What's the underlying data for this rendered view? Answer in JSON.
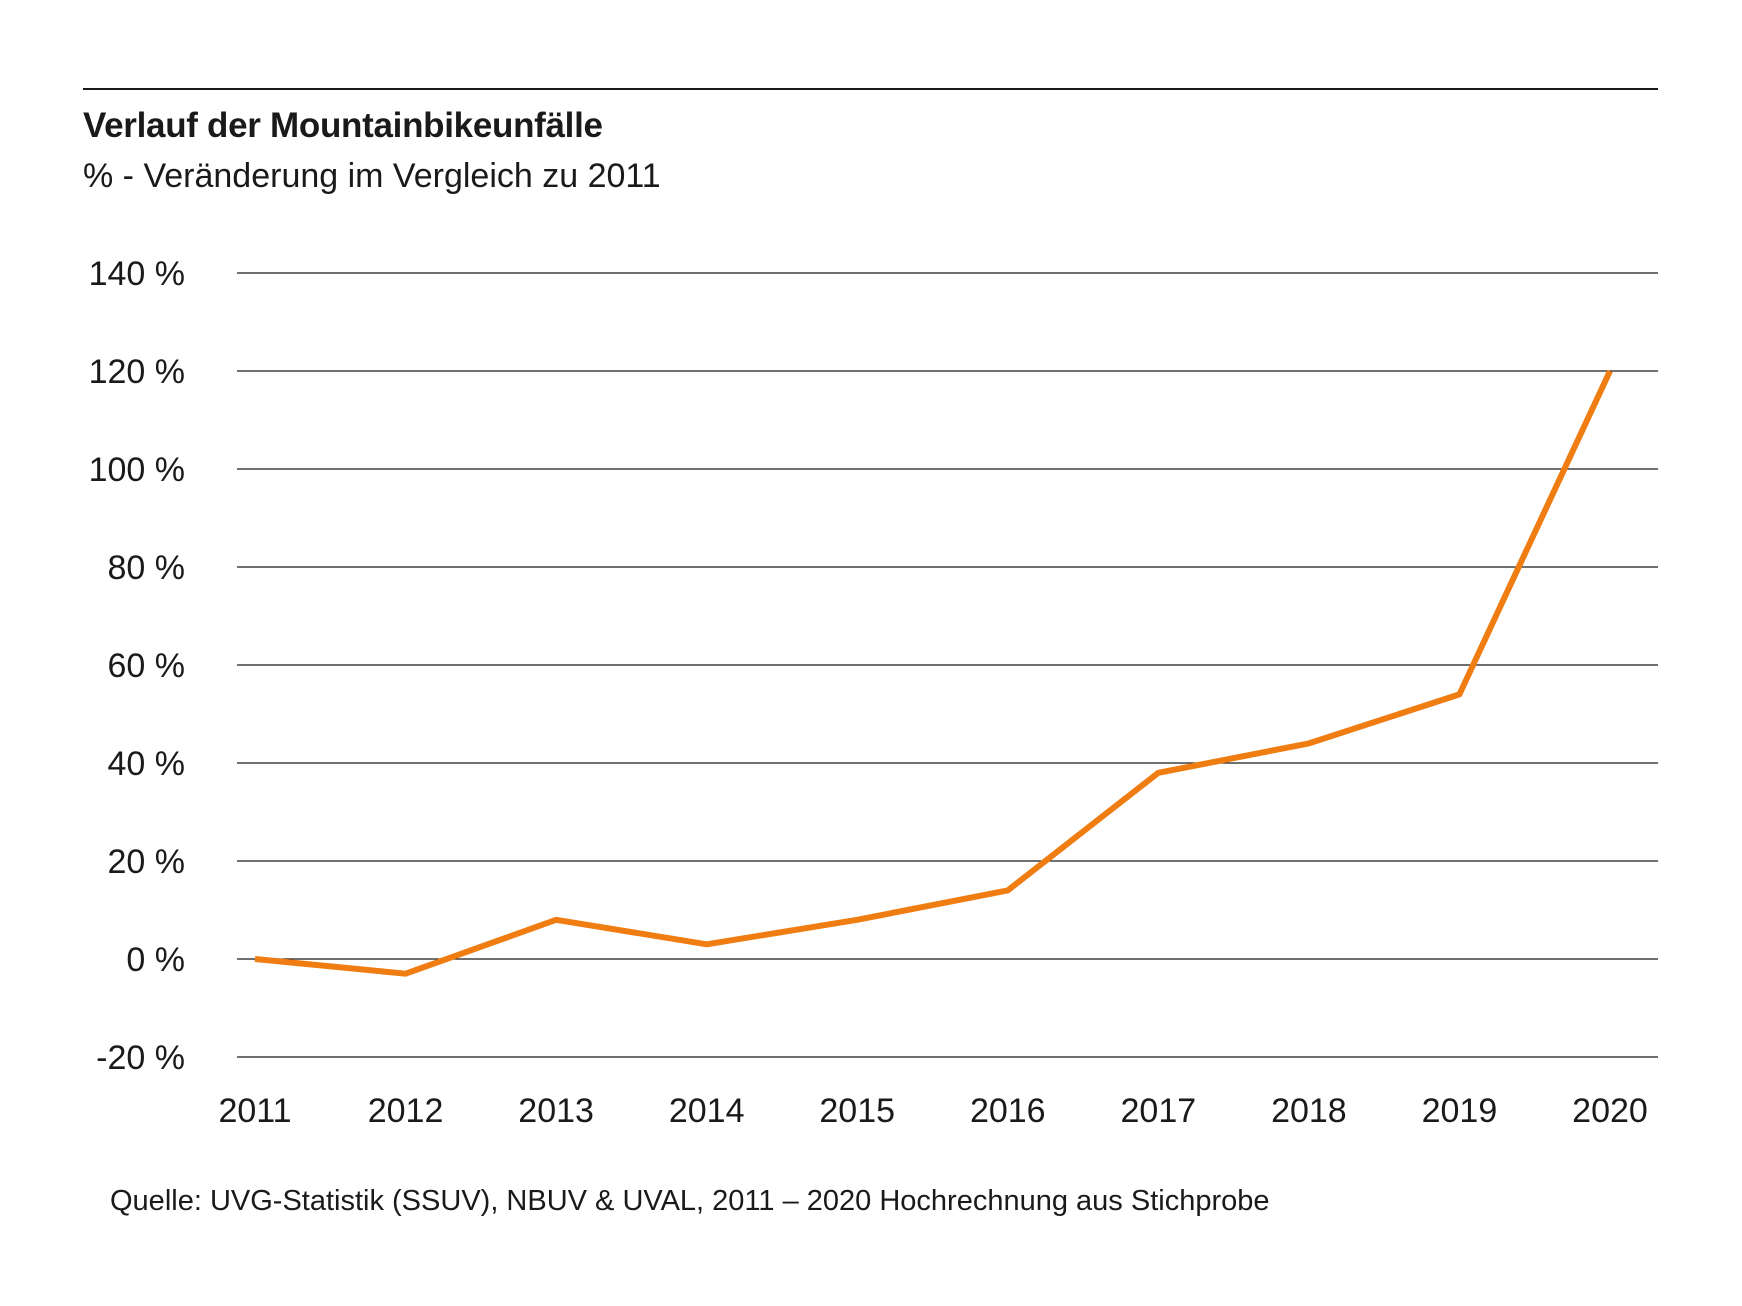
{
  "chart_data": {
    "type": "line",
    "title": "Verlauf der Mountainbikeunfälle",
    "subtitle": "% - Veränderung im Vergleich zu 2011",
    "source": "Quelle: UVG-Statistik (SSUV), NBUV & UVAL, 2011 – 2020 Hochrechnung aus Stichprobe",
    "categories": [
      "2011",
      "2012",
      "2013",
      "2014",
      "2015",
      "2016",
      "2017",
      "2018",
      "2019",
      "2020"
    ],
    "series": [
      {
        "values": [
          0,
          -3,
          8,
          3,
          8,
          14,
          38,
          44,
          54,
          120
        ],
        "color": "#f07d11"
      }
    ],
    "ylim": [
      -20,
      140
    ],
    "yticks": [
      140,
      120,
      100,
      80,
      60,
      40,
      20,
      0,
      -20
    ],
    "ytick_labels": [
      "140 %",
      "120 %",
      "100 %",
      "80 %",
      "60 %",
      "40 %",
      "20 %",
      "0 %",
      "-20 %"
    ],
    "xlabel": "",
    "ylabel": "",
    "grid": true,
    "gridline_color": "#1a1a1a",
    "legend": "none"
  }
}
